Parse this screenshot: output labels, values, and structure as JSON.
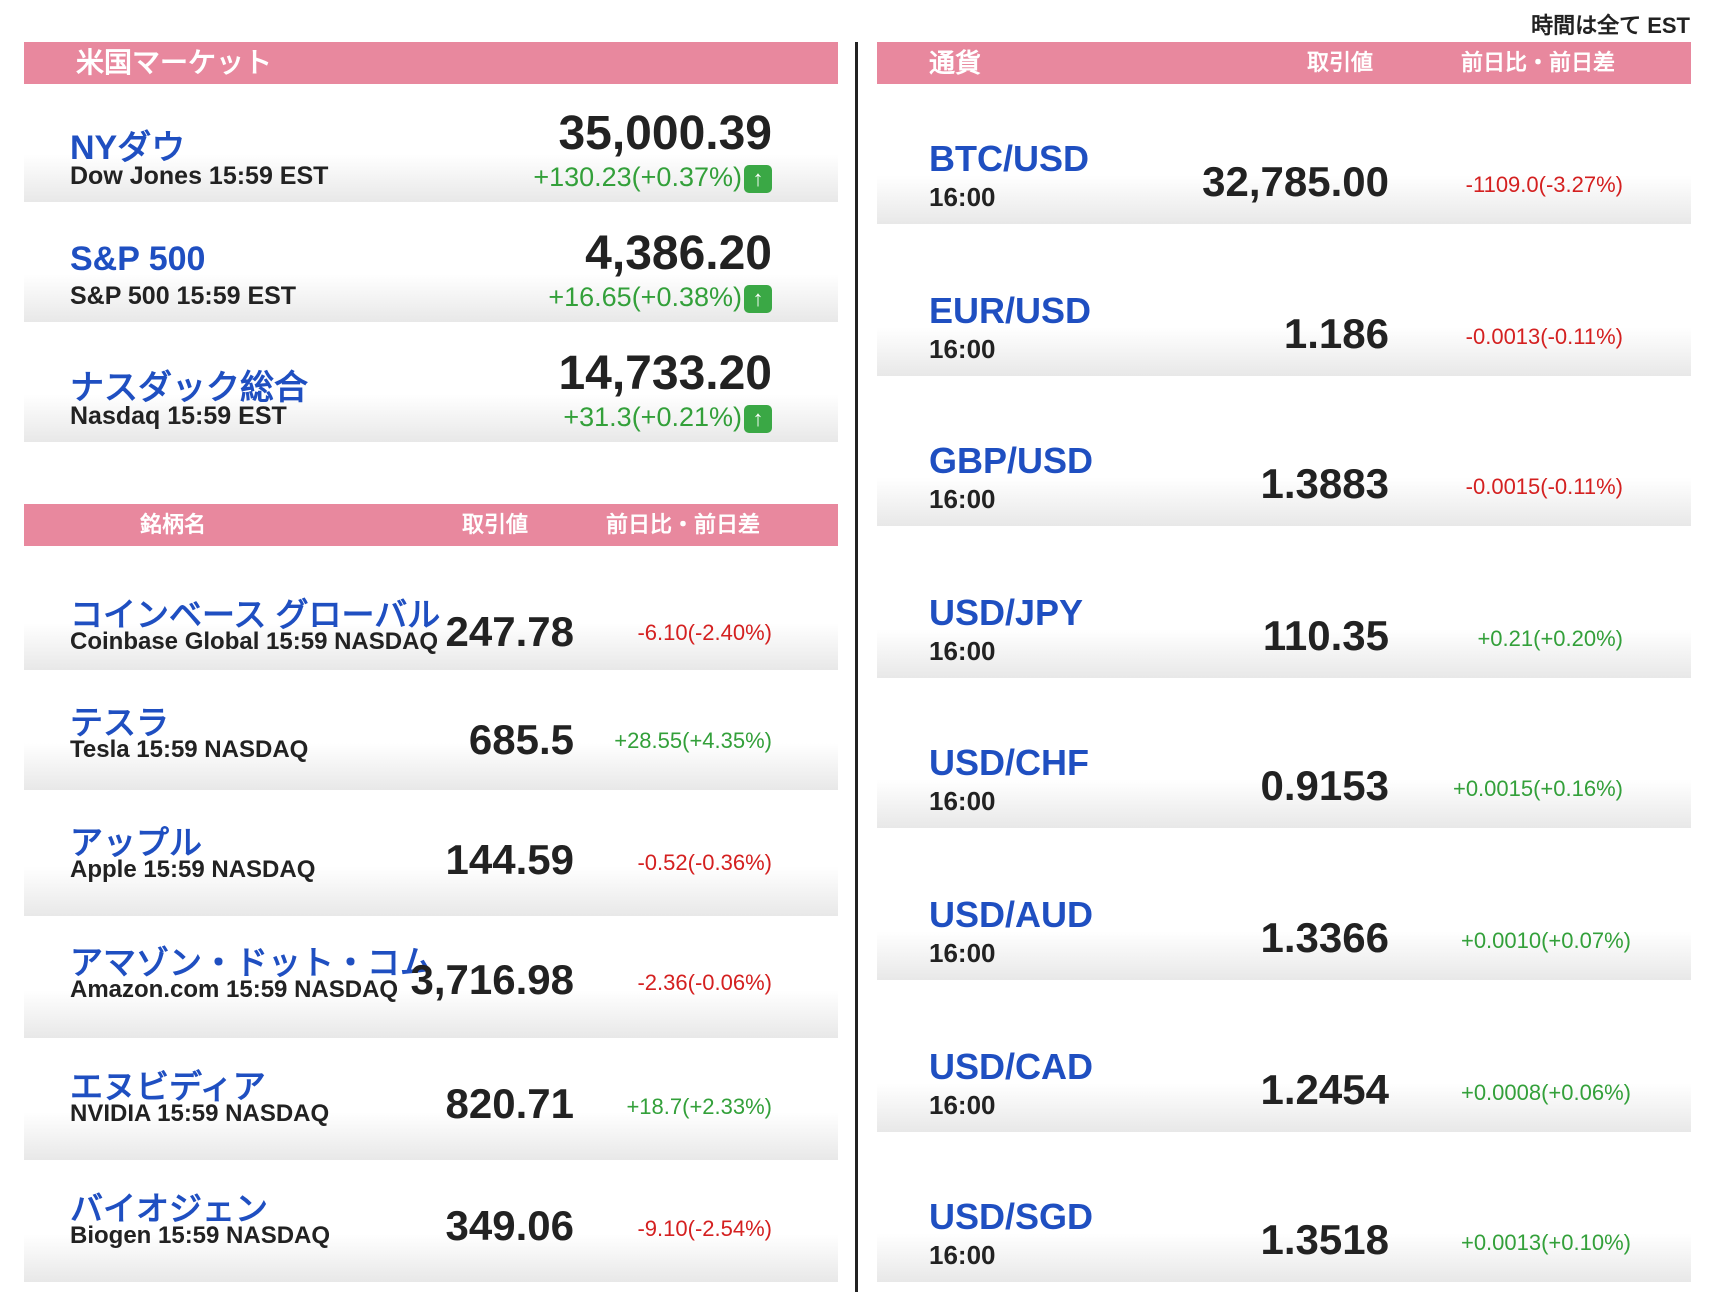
{
  "timezone_note": "時間は全て EST",
  "colors": {
    "header": "#e8889e",
    "name": "#1f4fc1",
    "up": "#33a03a",
    "down": "#d42020"
  },
  "market": {
    "header": "米国マーケット",
    "indices": [
      {
        "name": "NYダウ",
        "sub": "Dow Jones 15:59 EST",
        "price": "35,000.39",
        "change": "+130.23(+0.37%)",
        "direction": "up",
        "icon": "arrow-up-icon"
      },
      {
        "name": "S&P 500",
        "sub": "S&P 500 15:59 EST",
        "price": "4,386.20",
        "change": "+16.65(+0.38%)",
        "direction": "up",
        "icon": "arrow-up-icon"
      },
      {
        "name": "ナスダック総合",
        "sub": "Nasdaq 15:59 EST",
        "price": "14,733.20",
        "change": "+31.3(+0.21%)",
        "direction": "up",
        "icon": "arrow-up-icon"
      }
    ]
  },
  "stocks": {
    "headers": [
      "銘柄名",
      "取引値",
      "前日比・前日差"
    ],
    "items": [
      {
        "name": "コインベース グローバル",
        "sub": "Coinbase Global 15:59  NASDAQ",
        "price": "247.78",
        "change": "-6.10(-2.40%)",
        "direction": "down"
      },
      {
        "name": "テスラ",
        "sub": "Tesla 15:59  NASDAQ",
        "price": "685.5",
        "change": "+28.55(+4.35%)",
        "direction": "up"
      },
      {
        "name": "アップル",
        "sub": "Apple 15:59  NASDAQ",
        "price": "144.59",
        "change": "-0.52(-0.36%)",
        "direction": "down"
      },
      {
        "name": "アマゾン・ドット・コム",
        "sub": "Amazon.com 15:59  NASDAQ",
        "price": "3,716.98",
        "change": "-2.36(-0.06%)",
        "direction": "down"
      },
      {
        "name": "エヌビディア",
        "sub": "NVIDIA 15:59  NASDAQ",
        "price": "820.71",
        "change": "+18.7(+2.33%)",
        "direction": "up"
      },
      {
        "name": "バイオジェン",
        "sub": "Biogen 15:59  NASDAQ",
        "price": "349.06",
        "change": "-9.10(-2.54%)",
        "direction": "down"
      }
    ]
  },
  "currency": {
    "headers": [
      "通貨",
      "取引値",
      "前日比・前日差"
    ],
    "items": [
      {
        "pair": "BTC/USD",
        "time": "16:00",
        "price": "32,785.00",
        "change": "-1109.0(-3.27%)",
        "direction": "down"
      },
      {
        "pair": "EUR/USD",
        "time": "16:00",
        "price": "1.186",
        "change": "-0.0013(-0.11%)",
        "direction": "down"
      },
      {
        "pair": "GBP/USD",
        "time": "16:00",
        "price": "1.3883",
        "change": "-0.0015(-0.11%)",
        "direction": "down"
      },
      {
        "pair": "USD/JPY",
        "time": "16:00",
        "price": "110.35",
        "change": "+0.21(+0.20%)",
        "direction": "up"
      },
      {
        "pair": "USD/CHF",
        "time": "16:00",
        "price": "0.9153",
        "change": "+0.0015(+0.16%)",
        "direction": "up"
      },
      {
        "pair": "USD/AUD",
        "time": "16:00",
        "price": "1.3366",
        "change": "+0.0010(+0.07%)",
        "direction": "up"
      },
      {
        "pair": "USD/CAD",
        "time": "16:00",
        "price": "1.2454",
        "change": "+0.0008(+0.06%)",
        "direction": "up"
      },
      {
        "pair": "USD/SGD",
        "time": "16:00",
        "price": "1.3518",
        "change": "+0.0013(+0.10%)",
        "direction": "up"
      }
    ]
  }
}
